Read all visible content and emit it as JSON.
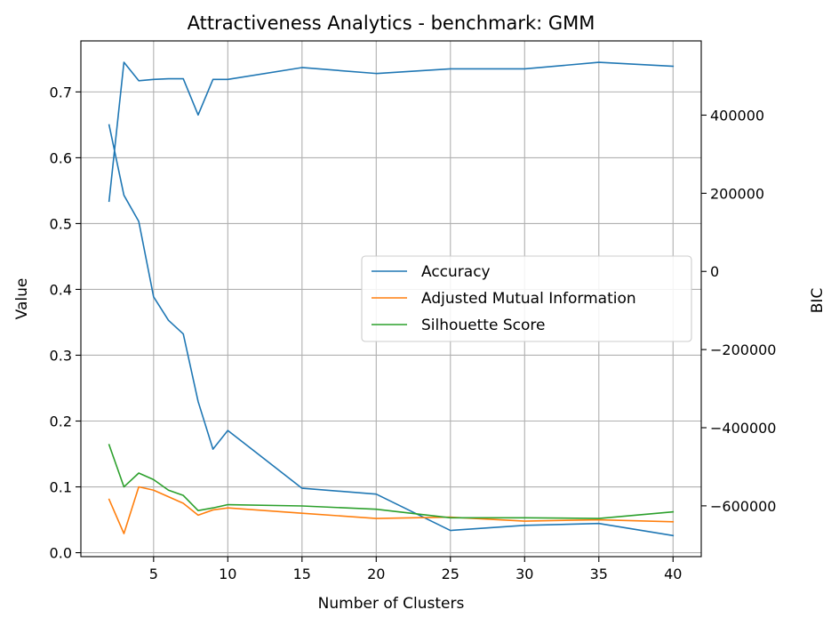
{
  "chart_data": {
    "type": "line",
    "title": "Attractiveness Analytics - benchmark: GMM",
    "xlabel": "Number of Clusters",
    "ylabel": "Value",
    "y2label": "BIC",
    "xlim": [
      0.1,
      41.9
    ],
    "ylim": [
      -0.006,
      0.7775
    ],
    "y2lim": [
      -730000,
      590000
    ],
    "xticks": [
      5,
      10,
      15,
      20,
      25,
      30,
      35,
      40
    ],
    "yticks": [
      0.0,
      0.1,
      0.2,
      0.3,
      0.4,
      0.5,
      0.6,
      0.7
    ],
    "yticklabels": [
      "0.0",
      "0.1",
      "0.2",
      "0.3",
      "0.4",
      "0.5",
      "0.6",
      "0.7"
    ],
    "y2ticks": [
      400000,
      200000,
      0,
      -200000,
      -400000,
      -600000
    ],
    "y2ticklabels": [
      "400000",
      "200000",
      "0",
      "−200000",
      "−400000",
      "−600000"
    ],
    "grid": true,
    "legend_position": "center-right",
    "x": [
      2,
      3,
      4,
      5,
      6,
      7,
      8,
      9,
      10,
      15,
      20,
      25,
      30,
      35,
      40
    ],
    "series": [
      {
        "name": "Accuracy",
        "axis": "left",
        "color": "#1f77b4",
        "values": [
          0.534,
          0.745,
          0.717,
          0.719,
          0.72,
          0.72,
          0.665,
          0.719,
          0.719,
          0.737,
          0.728,
          0.735,
          0.735,
          0.745,
          0.739
        ]
      },
      {
        "name": "Adjusted Mutual Information",
        "axis": "left",
        "color": "#ff7f0e",
        "values": [
          0.081,
          0.029,
          0.1,
          0.095,
          0.085,
          0.075,
          0.057,
          0.065,
          0.068,
          0.06,
          0.052,
          0.054,
          0.048,
          0.05,
          0.047
        ]
      },
      {
        "name": "Silhouette Score",
        "axis": "left",
        "color": "#2ca02c",
        "values": [
          0.164,
          0.1,
          0.121,
          0.111,
          0.095,
          0.087,
          0.064,
          0.068,
          0.073,
          0.071,
          0.066,
          0.053,
          0.053,
          0.052,
          0.062
        ]
      },
      {
        "name": "BIC",
        "axis": "right",
        "color": "#1f77b4",
        "in_legend": false,
        "values": [
          375000,
          195000,
          128000,
          -65000,
          -125000,
          -160000,
          -333000,
          -455000,
          -407000,
          -555000,
          -570000,
          -663000,
          -650000,
          -645000,
          -676000
        ]
      }
    ]
  }
}
